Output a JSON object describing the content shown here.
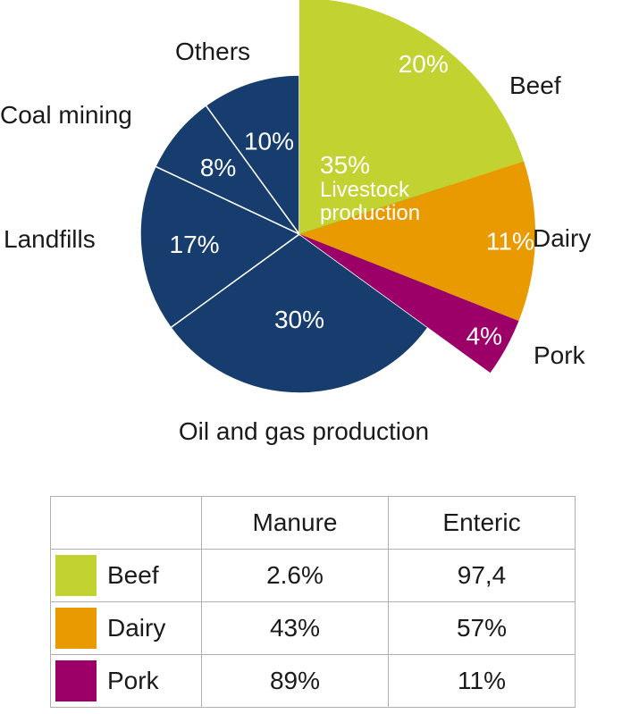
{
  "chart_data": [
    {
      "type": "pie",
      "slices": [
        {
          "label": "Oil and gas production",
          "value": 30,
          "value_label": "30%",
          "color": "#163d6e"
        },
        {
          "label": "Landfills",
          "value": 17,
          "value_label": "17%",
          "color": "#163d6e"
        },
        {
          "label": "Coal mining",
          "value": 8,
          "value_label": "8%",
          "color": "#163d6e"
        },
        {
          "label": "Others",
          "value": 10,
          "value_label": "10%",
          "color": "#163d6e"
        },
        {
          "label": "Livestock production",
          "value": 35,
          "value_label": "35%",
          "color": "#00a9e0"
        }
      ],
      "center_label": {
        "value_label": "35%",
        "line1": "Livestock",
        "line2": "production"
      },
      "breakdown": [
        {
          "label": "Beef",
          "value": 20,
          "value_label": "20%",
          "color": "#c2d230"
        },
        {
          "label": "Dairy",
          "value": 11,
          "value_label": "11%",
          "color": "#e89a00"
        },
        {
          "label": "Pork",
          "value": 4,
          "value_label": "4%",
          "color": "#9c0068"
        }
      ]
    },
    {
      "type": "table",
      "columns": [
        "",
        "Manure",
        "Enteric"
      ],
      "rows": [
        {
          "label": "Beef",
          "color": "#c2d230",
          "values": [
            "2.6%",
            "97,4"
          ]
        },
        {
          "label": "Dairy",
          "color": "#e89a00",
          "values": [
            "43%",
            "57%"
          ]
        },
        {
          "label": "Pork",
          "color": "#9c0068",
          "values": [
            "89%",
            "11%"
          ]
        }
      ]
    }
  ]
}
